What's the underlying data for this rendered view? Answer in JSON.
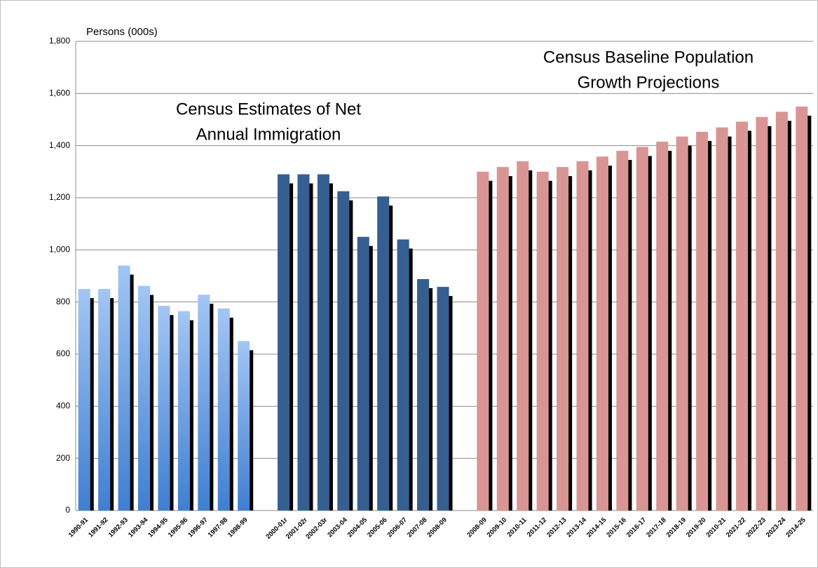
{
  "chart_data": {
    "type": "bar",
    "y_label": "Persons (000s)",
    "annotations": [
      [
        "Census Estimates of Net",
        "Annual Immigration"
      ],
      [
        "Census Baseline Population",
        "Growth Projections"
      ]
    ],
    "categories": [
      "1990-91",
      "1991-92",
      "1992-93",
      "1993-94",
      "1994-95",
      "1995-96",
      "1996-97",
      "1997-98",
      "1998-99",
      null,
      "2000-01r",
      "2001-02r",
      "2002-03r",
      "2003-04",
      "2004-05",
      "2005-06",
      "2006-07",
      "2007-08",
      "2008-09",
      null,
      "2008-09",
      "2009-10",
      "2010-11",
      "2011-12",
      "2012-13",
      "2013-14",
      "2014-15",
      "2015-16",
      "2016-17",
      "2017-18",
      "2018-19",
      "2019-20",
      "2010-21",
      "2021-22",
      "2022-23",
      "2023-24",
      "2014-25"
    ],
    "series": [
      {
        "color": "#a3c6f4",
        "values": [
          850,
          850,
          940,
          862,
          785,
          765,
          828,
          775,
          650,
          null,
          null,
          null,
          null,
          null,
          null,
          null,
          null,
          null,
          null,
          null,
          null,
          null,
          null,
          null,
          null,
          null,
          null,
          null,
          null,
          null,
          null,
          null,
          null,
          null,
          null,
          null,
          null
        ]
      },
      {
        "color": "#365f91",
        "values": [
          null,
          null,
          null,
          null,
          null,
          null,
          null,
          null,
          null,
          null,
          1290,
          1290,
          1290,
          1225,
          1050,
          1205,
          1040,
          888,
          858,
          null,
          null,
          null,
          null,
          null,
          null,
          null,
          null,
          null,
          null,
          null,
          null,
          null,
          null,
          null,
          null,
          null,
          null
        ]
      },
      {
        "color": "#d99594",
        "values": [
          null,
          null,
          null,
          null,
          null,
          null,
          null,
          null,
          null,
          null,
          null,
          null,
          null,
          null,
          null,
          null,
          null,
          null,
          null,
          null,
          1300,
          1318,
          1340,
          1300,
          1318,
          1340,
          1358,
          1380,
          1395,
          1415,
          1435,
          1453,
          1470,
          1492,
          1510,
          1530,
          1550
        ]
      }
    ],
    "ylim": [
      0,
      1800
    ],
    "yticks": [
      0,
      200,
      400,
      600,
      800,
      {
        "value": 1000,
        "label": "1,000"
      },
      {
        "value": 1200,
        "label": "1,200"
      },
      {
        "value": 1400,
        "label": "1,400"
      },
      {
        "value": 1600,
        "label": "1,600"
      },
      {
        "value": 1800,
        "label": "1,800"
      }
    ],
    "grid": true
  }
}
